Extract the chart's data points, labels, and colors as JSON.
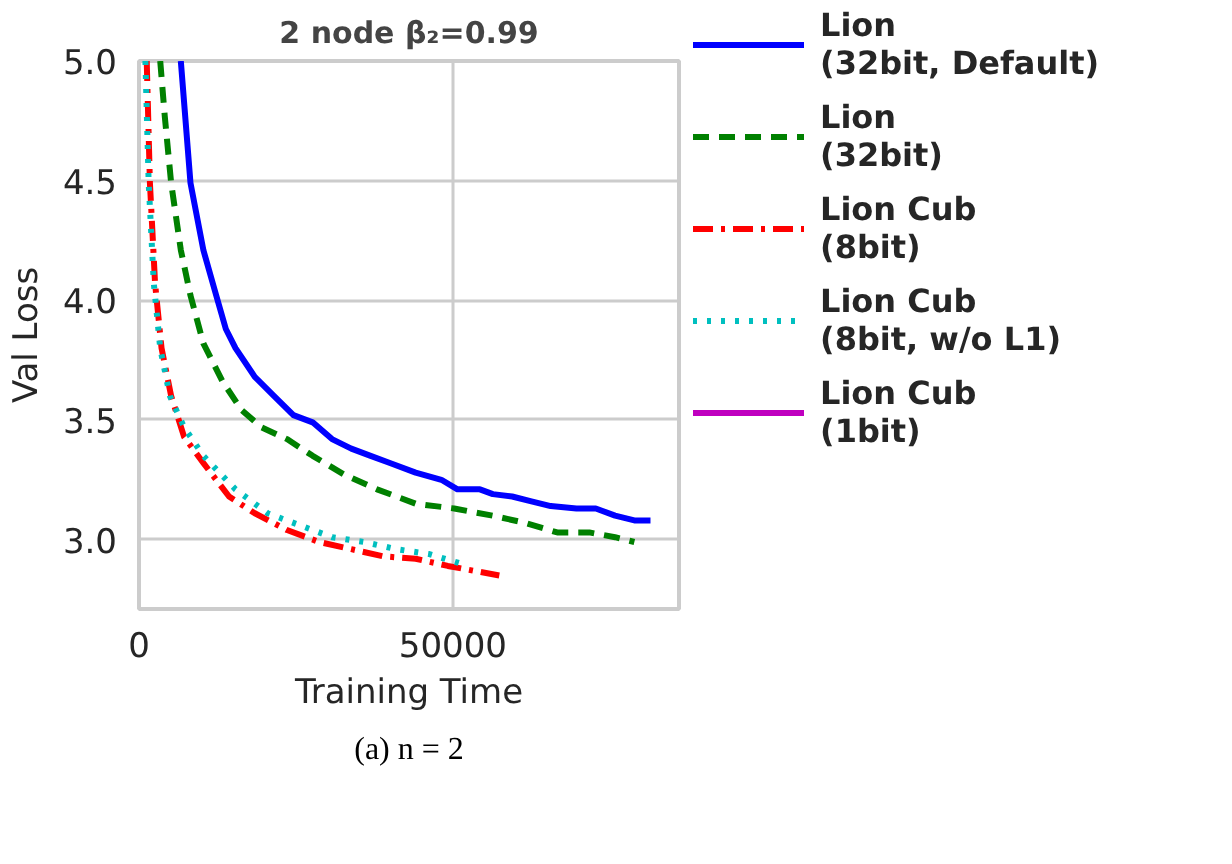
{
  "chart_data": {
    "type": "line",
    "title": "2 node β₂=0.99",
    "xlabel": "Training Time",
    "ylabel": "Val Loss",
    "xlim": [
      0,
      86000
    ],
    "ylim": [
      2.71,
      5.0
    ],
    "xticks": [
      0,
      50000
    ],
    "yticks": [
      {
        "value": 3.0,
        "label": "3.0"
      },
      {
        "value": 3.5,
        "label": "3.5"
      },
      {
        "value": 4.0,
        "label": "4.0"
      },
      {
        "value": 4.5,
        "label": "4.5"
      },
      {
        "value": 5.0,
        "label": "5.0"
      }
    ],
    "grid": true,
    "legend": "right",
    "annotations": [
      "(a) n = 2"
    ],
    "series": [
      {
        "name": "Lion (32bit, Default)",
        "color": "#0000ff",
        "line_style": "solid",
        "x": [
          6660,
          8200,
          10250,
          12300,
          13830,
          15370,
          18440,
          21520,
          24590,
          27660,
          30740,
          33810,
          36890,
          39960,
          44060,
          48160,
          50720,
          54300,
          56350,
          59430,
          62500,
          65570,
          69670,
          72750,
          75820,
          78890,
          81460
        ],
        "values": [
          5.0,
          4.49,
          4.21,
          4.02,
          3.88,
          3.8,
          3.68,
          3.6,
          3.52,
          3.49,
          3.42,
          3.38,
          3.35,
          3.32,
          3.28,
          3.25,
          3.21,
          3.21,
          3.19,
          3.18,
          3.16,
          3.14,
          3.13,
          3.13,
          3.1,
          3.08,
          3.08
        ]
      },
      {
        "name": "Lion (32bit)",
        "color": "#008000",
        "line_style": "dashed",
        "x": [
          3380,
          4100,
          5120,
          6660,
          8200,
          10250,
          13320,
          16390,
          19470,
          23570,
          27660,
          32790,
          37910,
          44060,
          50200,
          56350,
          61480,
          66600,
          71720,
          75820,
          78890
        ],
        "values": [
          5.0,
          4.77,
          4.49,
          4.21,
          4.02,
          3.82,
          3.66,
          3.54,
          3.47,
          3.42,
          3.35,
          3.27,
          3.21,
          3.15,
          3.13,
          3.1,
          3.07,
          3.03,
          3.03,
          3.01,
          2.99
        ]
      },
      {
        "name": "Lion Cub (8bit)",
        "color": "#ff0000",
        "line_style": "dashdot",
        "x": [
          1230,
          1740,
          2560,
          3590,
          5120,
          7170,
          10250,
          14340,
          18440,
          23570,
          28690,
          33810,
          38930,
          44060,
          49180,
          53280,
          57380
        ],
        "values": [
          5.0,
          4.49,
          4.07,
          3.8,
          3.6,
          3.43,
          3.32,
          3.18,
          3.11,
          3.04,
          2.99,
          2.96,
          2.93,
          2.92,
          2.89,
          2.87,
          2.85
        ]
      },
      {
        "name": "Lion Cub (8bit, w/o L1)",
        "color": "#00bfbf",
        "line_style": "dotted",
        "x": [
          1020,
          1540,
          2360,
          3380,
          4920,
          7170,
          10250,
          15370,
          20490,
          25610,
          30740,
          35860,
          40980,
          46110,
          51230
        ],
        "values": [
          5.0,
          4.49,
          4.07,
          3.8,
          3.6,
          3.47,
          3.35,
          3.21,
          3.11,
          3.06,
          3.01,
          2.99,
          2.96,
          2.94,
          2.9
        ]
      },
      {
        "name": "Lion Cub (1bit)",
        "color": "#bf00bf",
        "line_style": "solid"
      }
    ]
  }
}
